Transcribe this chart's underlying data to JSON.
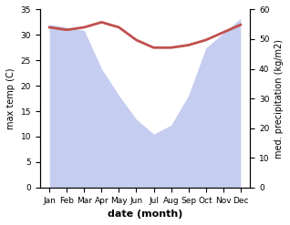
{
  "months": [
    "Jan",
    "Feb",
    "Mar",
    "Apr",
    "May",
    "Jun",
    "Jul",
    "Aug",
    "Sep",
    "Oct",
    "Nov",
    "Dec"
  ],
  "temperature": [
    31.5,
    31.0,
    31.5,
    32.5,
    31.5,
    29.0,
    27.5,
    27.5,
    28.0,
    29.0,
    30.5,
    32.0
  ],
  "precipitation": [
    55.0,
    54.0,
    53.0,
    40.0,
    31.0,
    23.0,
    18.0,
    21.0,
    31.0,
    47.0,
    52.0,
    57.0
  ],
  "temp_color": "#c0504d",
  "precip_fill_color": "#c5cdf0",
  "background_color": "#ffffff",
  "xlabel": "date (month)",
  "ylabel_left": "max temp (C)",
  "ylabel_right": "med. precipitation (kg/m2)",
  "ylim_left": [
    0,
    35
  ],
  "ylim_right": [
    0,
    60
  ],
  "yticks_left": [
    0,
    5,
    10,
    15,
    20,
    25,
    30,
    35
  ],
  "yticks_right": [
    0,
    10,
    20,
    30,
    40,
    50,
    60
  ],
  "temp_linewidth": 2.0
}
